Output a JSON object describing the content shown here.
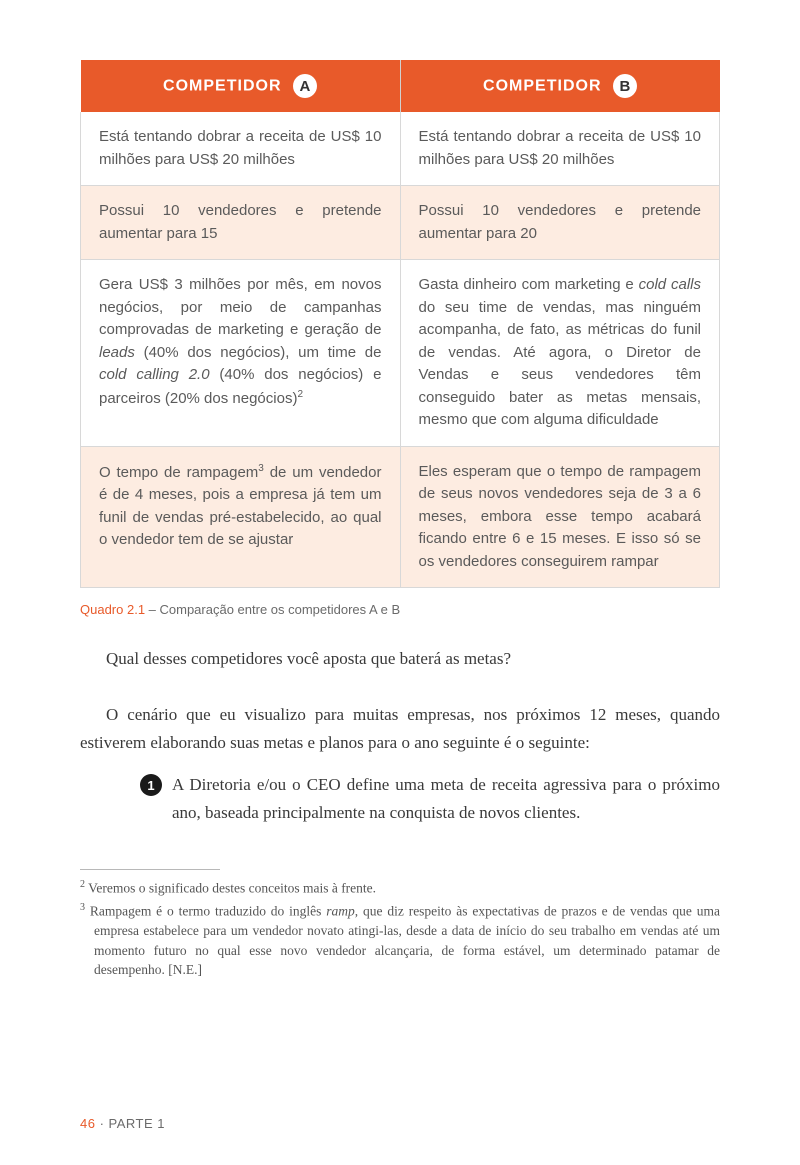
{
  "table": {
    "headerA_label": "COMPETIDOR",
    "headerA_badge": "A",
    "headerB_label": "COMPETIDOR",
    "headerB_badge": "B",
    "header_bg": "#e85a2a",
    "header_fg": "#ffffff",
    "tint_bg": "#fdece1",
    "border_color": "#d8d8d8",
    "rows": [
      {
        "a": "Está tentando dobrar a receita de US$ 10 milhões para US$ 20 milhões",
        "b": "Está tentando dobrar a receita de US$ 10 milhões para US$ 20 milhões",
        "tint": false
      },
      {
        "a": "Possui 10 vendedores e pretende aumentar para 15",
        "b": "Possui 10 vendedores e pretende aumentar para 20",
        "tint": true
      },
      {
        "a_html": "Gera US$ 3 milhões por mês, em novos negócios, por meio de campanhas comprovadas de marketing e geração de <span class='italic'>leads</span> (40% dos negócios), um time de <span class='italic'>cold calling 2.0</span> (40% dos negócios) e parceiros (20% dos negócios)<span class='sup'>2</span>",
        "b_html": "Gasta dinheiro com marketing e <span class='italic'>cold calls</span> do seu time de vendas, mas ninguém acompanha, de fato, as métricas do funil de vendas. Até agora, o Diretor de Vendas e seus vendedores têm conseguido bater as metas mensais, mesmo que com alguma dificuldade",
        "tint": false
      },
      {
        "a_html": "O tempo de rampagem<span class='sup'>3</span> de um vendedor é de 4 meses, pois a empresa já tem um funil de vendas pré-estabelecido, ao qual o vendedor tem de se ajustar",
        "b": "Eles esperam que o tempo de rampagem de seus novos vendedores seja de 3 a 6 meses, embora esse tempo acabará ficando entre 6 e 15 meses. E isso só se os vendedores conseguirem rampar",
        "tint": true
      }
    ]
  },
  "caption": {
    "label": "Quadro 2.1",
    "text": " – Comparação entre os competidores A e B"
  },
  "para1": "Qual desses competidores você aposta que baterá as metas?",
  "para2": "O cenário que eu visualizo para muitas empresas, nos próximos 12 meses, quando estiverem elaborando suas metas e planos para o ano seguinte é o seguinte:",
  "list": {
    "num": "1",
    "text": "A Diretoria e/ou o CEO define uma meta de receita agressiva para o próximo ano, baseada principalmente na conquista de novos clientes."
  },
  "footnotes": {
    "f2_html": "<span class='fn-sup'>2</span>  Veremos o significado destes conceitos mais à frente.",
    "f3_html": "<span class='fn-sup'>3</span>  Rampagem é o termo traduzido do inglês <span class='italic'>ramp</span>, que diz respeito às expectativas de prazos e de vendas que uma empresa estabelece para um vendedor novato atingi-las, desde a data de início do seu trabalho em vendas até um momento futuro no qual esse novo vendedor alcançaria, de forma estável, um determinado patamar de desempenho. [N.E.]"
  },
  "footer": {
    "page": "46",
    "sep": " · ",
    "section": "PARTE 1"
  }
}
